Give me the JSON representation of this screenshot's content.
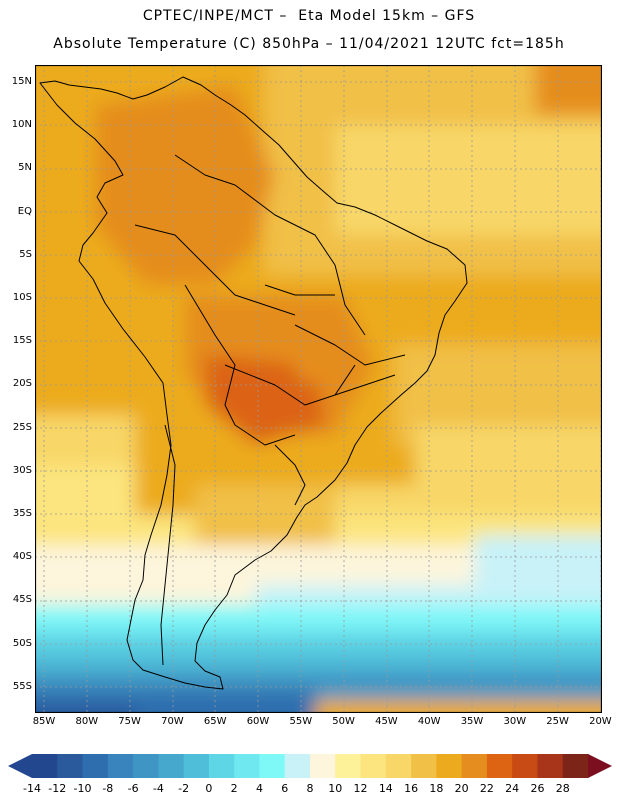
{
  "header": {
    "line1": "CPTEC/INPE/MCT –  Eta Model 15km – GFS",
    "line2": "Absolute Temperature (C) 850hPa – 11/04/2021 12UTC fct=185h"
  },
  "map": {
    "region": "South America",
    "lat_labels": [
      "15N",
      "10N",
      "5N",
      "EQ",
      "5S",
      "10S",
      "15S",
      "20S",
      "25S",
      "30S",
      "35S",
      "40S",
      "45S",
      "50S",
      "55S"
    ],
    "lon_labels": [
      "85W",
      "80W",
      "75W",
      "70W",
      "65W",
      "60W",
      "55W",
      "50W",
      "45W",
      "40W",
      "35W",
      "30W",
      "25W",
      "20W"
    ]
  },
  "colorbar": {
    "labels": [
      "-14",
      "-12",
      "-10",
      "-8",
      "-6",
      "-4",
      "-2",
      "0",
      "2",
      "4",
      "6",
      "8",
      "10",
      "12",
      "14",
      "16",
      "18",
      "20",
      "22",
      "24",
      "26",
      "28"
    ],
    "colors": [
      "#23478f",
      "#2a5a9c",
      "#2f6eae",
      "#3a84bd",
      "#3f96c4",
      "#45a8cc",
      "#4fbfd9",
      "#5fd6e6",
      "#6fe8ef",
      "#7ff8f8",
      "#c8f2f8",
      "#fdf5dc",
      "#fdf19a",
      "#fce57e",
      "#f8d768",
      "#f1c046",
      "#ecab1f",
      "#e58d1e",
      "#dc6412",
      "#c84a14",
      "#a8341a",
      "#7c2418"
    ]
  }
}
